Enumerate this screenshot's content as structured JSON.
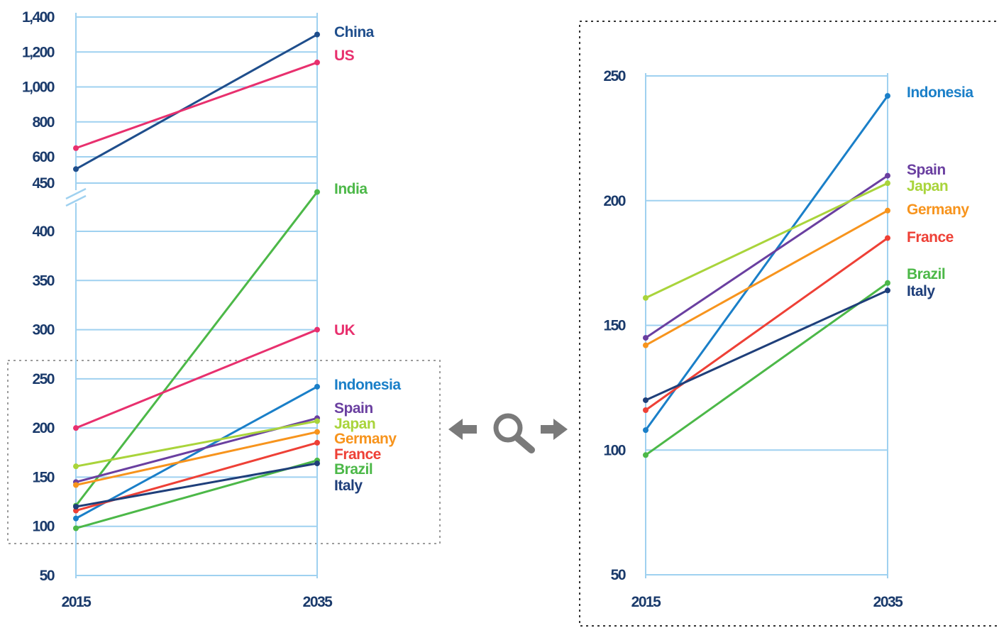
{
  "chart_data": [
    {
      "type": "line",
      "x": [
        "2015",
        "2035"
      ],
      "axis_break": true,
      "ylim_upper": [
        450,
        1400
      ],
      "yticks_upper": [
        "1,400",
        "1,200",
        "1,000",
        "800",
        "600",
        "450"
      ],
      "ylim_lower": [
        50,
        400
      ],
      "yticks_lower": [
        "400",
        "350",
        "300",
        "250",
        "200",
        "150",
        "100",
        "50"
      ],
      "grid": true,
      "series": [
        {
          "name": "China",
          "values": [
            530,
            1300
          ],
          "color": "#1f4e8c"
        },
        {
          "name": "US",
          "values": [
            650,
            1140
          ],
          "color": "#e8306e"
        },
        {
          "name": "India",
          "values": [
            121,
            440
          ],
          "color": "#4cb848"
        },
        {
          "name": "UK",
          "values": [
            200,
            300
          ],
          "color": "#e8306e"
        },
        {
          "name": "Indonesia",
          "values": [
            108,
            242
          ],
          "color": "#1a7fc8"
        },
        {
          "name": "Spain",
          "values": [
            145,
            210
          ],
          "color": "#6a3fa0"
        },
        {
          "name": "Japan",
          "values": [
            161,
            207
          ],
          "color": "#a9d43b"
        },
        {
          "name": "Germany",
          "values": [
            142,
            196
          ],
          "color": "#f7941d"
        },
        {
          "name": "France",
          "values": [
            116,
            185
          ],
          "color": "#ee4036"
        },
        {
          "name": "Brazil",
          "values": [
            98,
            167
          ],
          "color": "#4cb848"
        },
        {
          "name": "Italy",
          "values": [
            120,
            164
          ],
          "color": "#1f3f7a"
        }
      ]
    },
    {
      "type": "line",
      "x": [
        "2015",
        "2035"
      ],
      "ylim": [
        50,
        250
      ],
      "yticks": [
        "250",
        "200",
        "150",
        "100",
        "50"
      ],
      "grid": true,
      "series": [
        {
          "name": "Indonesia",
          "values": [
            108,
            242
          ],
          "color": "#1a7fc8"
        },
        {
          "name": "Spain",
          "values": [
            145,
            210
          ],
          "color": "#6a3fa0"
        },
        {
          "name": "Japan",
          "values": [
            161,
            207
          ],
          "color": "#a9d43b"
        },
        {
          "name": "Germany",
          "values": [
            142,
            196
          ],
          "color": "#f7941d"
        },
        {
          "name": "France",
          "values": [
            116,
            185
          ],
          "color": "#ee4036"
        },
        {
          "name": "Brazil",
          "values": [
            98,
            167
          ],
          "color": "#4cb848"
        },
        {
          "name": "Italy",
          "values": [
            120,
            164
          ],
          "color": "#1f3f7a"
        }
      ]
    }
  ],
  "icons": {
    "zoom": "magnifier-icon",
    "left": "arrow-left-icon",
    "right": "arrow-right-icon",
    "color": "#7a7a7a"
  }
}
